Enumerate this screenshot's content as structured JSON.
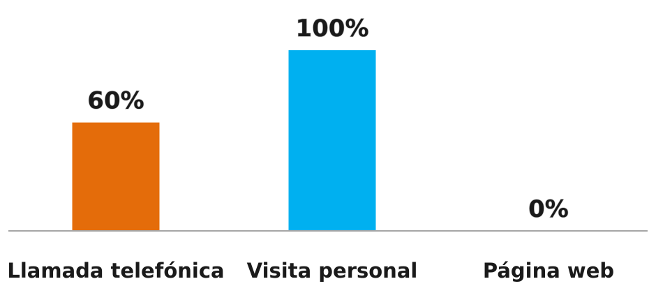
{
  "chart_data": {
    "type": "bar",
    "categories": [
      "Llamada telefónica",
      "Visita personal",
      "Página web"
    ],
    "values": [
      60,
      100,
      0
    ],
    "value_labels": [
      "60%",
      "100%",
      "0%"
    ],
    "colors": [
      "#E46C0A",
      "#00B0F0",
      "#00B0F0"
    ],
    "ylim": [
      0,
      100
    ],
    "title": "",
    "xlabel": "",
    "ylabel": "",
    "grid": false,
    "legend": "none"
  }
}
